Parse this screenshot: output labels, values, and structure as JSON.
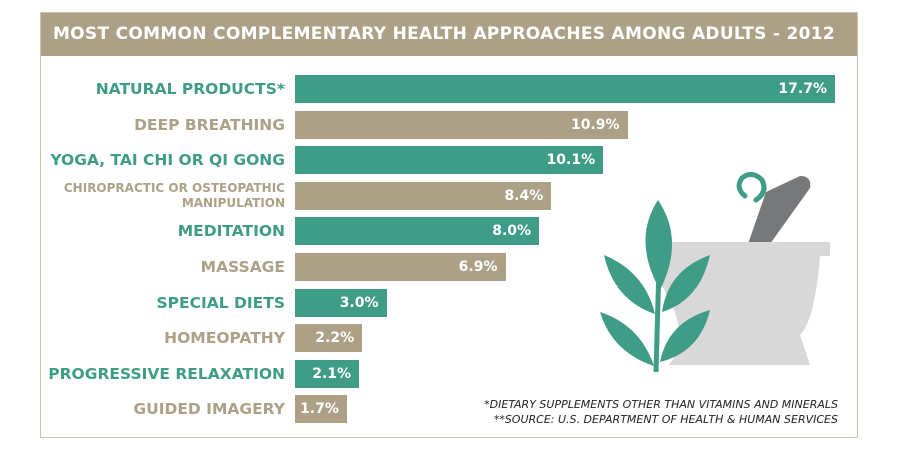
{
  "chart_data": {
    "type": "bar",
    "orientation": "horizontal",
    "title": "MOST COMMON COMPLEMENTARY HEALTH APPROACHES AMONG ADULTS - 2012",
    "categories": [
      "NATURAL PRODUCTS*",
      "DEEP BREATHING",
      "YOGA, TAI CHI OR QI GONG",
      "CHIROPRACTIC OR OSTEOPATHIC MANIPULATION",
      "MEDITATION",
      "MASSAGE",
      "SPECIAL DIETS",
      "HOMEOPATHY",
      "PROGRESSIVE RELAXATION",
      "GUIDED IMAGERY"
    ],
    "values": [
      17.7,
      10.9,
      10.1,
      8.4,
      8.0,
      6.9,
      3.0,
      2.2,
      2.1,
      1.7
    ],
    "value_labels": [
      "17.7%",
      "10.9%",
      "10.1%",
      "8.4%",
      "8.0%",
      "6.9%",
      "3.0%",
      "2.2%",
      "2.1%",
      "1.7%"
    ],
    "colors": [
      "#3f9c86",
      "#aca187",
      "#3f9c86",
      "#aca187",
      "#3f9c86",
      "#aca187",
      "#3f9c86",
      "#aca187",
      "#3f9c86",
      "#aca187"
    ],
    "notes": [
      "*DIETARY SUPPLEMENTS OTHER THAN VITAMINS AND MINERALS",
      "**SOURCE: U.S. DEPARTMENT OF HEALTH & HUMAN SERVICES"
    ]
  }
}
